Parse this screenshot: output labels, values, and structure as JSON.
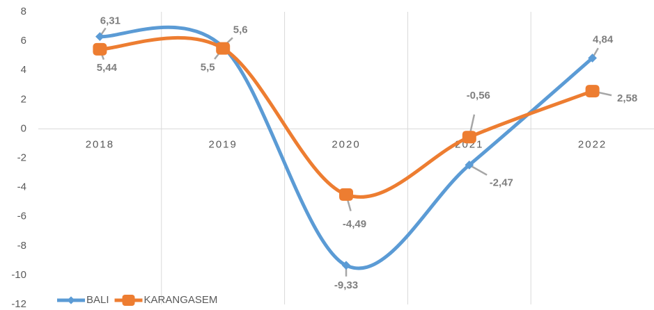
{
  "chart_data": {
    "type": "line",
    "categories": [
      "2018",
      "2019",
      "2020",
      "2021",
      "2022"
    ],
    "series": [
      {
        "name": "BALI",
        "color": "#5b9bd5",
        "values": [
          6.31,
          5.6,
          -9.33,
          -2.47,
          4.84
        ],
        "value_labels": [
          "6,31",
          "5,6",
          "-9,33",
          "-2,47",
          "4,84"
        ]
      },
      {
        "name": "KARANGASEM",
        "color": "#ed7d31",
        "values": [
          5.44,
          5.5,
          -4.49,
          -0.56,
          2.58
        ],
        "value_labels": [
          "5,44",
          "5,5",
          "-4,49",
          "-0,56",
          "2,58"
        ]
      }
    ],
    "ylim": [
      -12,
      8
    ],
    "yticks": [
      -12,
      -10,
      -8,
      -6,
      -4,
      -2,
      0,
      2,
      4,
      6,
      8
    ],
    "grid": false,
    "legend": "bottom-left"
  }
}
